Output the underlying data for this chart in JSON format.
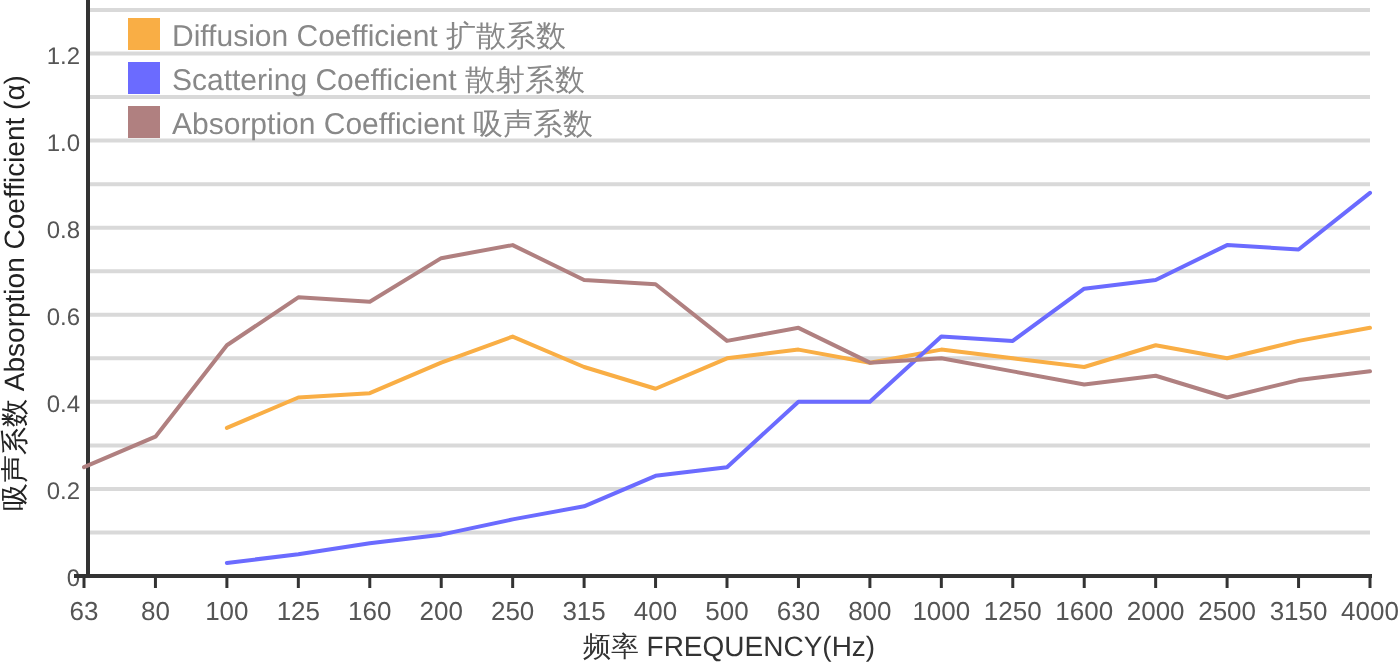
{
  "chart_data": {
    "type": "line",
    "xlabel": "频率 FREQUENCY(Hz)",
    "ylabel": "吸声系数 Absorption Coefficient (α)",
    "categories": [
      "63",
      "80",
      "100",
      "125",
      "160",
      "200",
      "250",
      "315",
      "400",
      "500",
      "630",
      "800",
      "1000",
      "1250",
      "1600",
      "2000",
      "2500",
      "3150",
      "4000"
    ],
    "series": [
      {
        "name": "Diffusion Coefficient 扩散系数",
        "color": "#f9ae45",
        "values": [
          null,
          null,
          0.34,
          0.41,
          0.42,
          0.49,
          0.55,
          0.48,
          0.43,
          0.5,
          0.52,
          0.49,
          0.52,
          0.5,
          0.48,
          0.53,
          0.5,
          0.54,
          0.57
        ]
      },
      {
        "name": "Scattering Coefficient 散射系数",
        "color": "#6b6bff",
        "values": [
          null,
          null,
          0.03,
          0.05,
          0.075,
          0.095,
          0.13,
          0.16,
          0.23,
          0.25,
          0.4,
          0.4,
          0.55,
          0.54,
          0.66,
          0.68,
          0.76,
          0.75,
          0.88
        ]
      },
      {
        "name": "Absorption Coefficient 吸声系数",
        "color": "#b08080",
        "values": [
          0.25,
          0.32,
          0.53,
          0.64,
          0.63,
          0.73,
          0.76,
          0.68,
          0.67,
          0.54,
          0.57,
          0.49,
          0.5,
          0.47,
          0.44,
          0.46,
          0.41,
          0.45,
          0.47
        ]
      }
    ],
    "ylim": [
      0,
      1.3
    ],
    "yticks": [
      {
        "value": 0,
        "label": "0"
      },
      {
        "value": 0.1,
        "label": null
      },
      {
        "value": 0.2,
        "label": "0.2"
      },
      {
        "value": 0.3,
        "label": null
      },
      {
        "value": 0.4,
        "label": "0.4"
      },
      {
        "value": 0.5,
        "label": null
      },
      {
        "value": 0.6,
        "label": "0.6"
      },
      {
        "value": 0.7,
        "label": null
      },
      {
        "value": 0.8,
        "label": "0.8"
      },
      {
        "value": 0.9,
        "label": null
      },
      {
        "value": 1.0,
        "label": "1.0"
      },
      {
        "value": 1.1,
        "label": null
      },
      {
        "value": 1.2,
        "label": "1.2"
      },
      {
        "value": 1.3,
        "label": null
      }
    ],
    "grid": "y",
    "legend": "top left",
    "marker": "none",
    "line_style": "solid"
  }
}
